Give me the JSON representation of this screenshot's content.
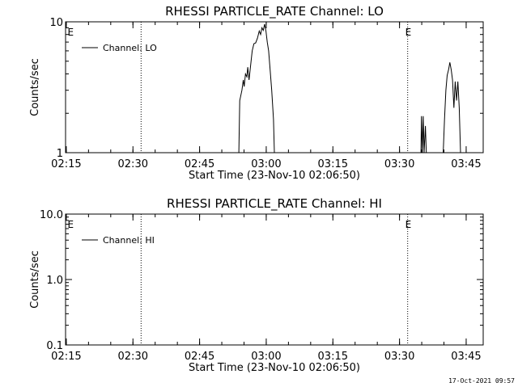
{
  "footer": {
    "timestamp": "17-Oct-2021 09:57"
  },
  "chart_data": [
    {
      "type": "line",
      "title": "RHESSI PARTICLE_RATE Channel: LO",
      "xlabel": "Start Time (23-Nov-10 02:06:50)",
      "ylabel": "Counts/sec",
      "x_ticks": [
        "02:15",
        "02:30",
        "02:45",
        "03:00",
        "03:15",
        "03:30",
        "03:45"
      ],
      "y_scale": "log",
      "ylim": [
        1,
        10
      ],
      "y_ticks": [
        "1",
        "10"
      ],
      "xlim_min": [
        8,
        102
      ],
      "grid": false,
      "legend": {
        "position": "top-left",
        "entries": [
          "Channel: LO"
        ]
      },
      "event_lines_min": [
        25,
        85,
        102
      ],
      "event_markers": [
        {
          "label": "E",
          "x_min": 9
        },
        {
          "label": "E",
          "x_min": 85
        }
      ],
      "series": [
        {
          "name": "Channel: LO",
          "points": [
            [
              47.0,
              1.0
            ],
            [
              47.2,
              2.5
            ],
            [
              47.7,
              3.0
            ],
            [
              48.0,
              3.6
            ],
            [
              48.2,
              3.2
            ],
            [
              48.5,
              4.0
            ],
            [
              48.8,
              3.8
            ],
            [
              49.0,
              4.5
            ],
            [
              49.3,
              3.6
            ],
            [
              49.7,
              4.8
            ],
            [
              50.0,
              6.0
            ],
            [
              50.4,
              6.8
            ],
            [
              50.8,
              6.9
            ],
            [
              51.2,
              7.5
            ],
            [
              51.6,
              8.5
            ],
            [
              51.9,
              8.0
            ],
            [
              52.2,
              9.0
            ],
            [
              52.5,
              8.6
            ],
            [
              52.8,
              9.6
            ],
            [
              53.1,
              8.5
            ],
            [
              53.4,
              7.0
            ],
            [
              53.7,
              6.0
            ],
            [
              54.0,
              4.5
            ],
            [
              54.4,
              3.0
            ],
            [
              54.8,
              1.8
            ],
            [
              55.0,
              1.0
            ]
          ]
        },
        {
          "name": "Channel: LO",
          "points": [
            [
              88.0,
              1.0
            ],
            [
              88.1,
              1.9
            ],
            [
              88.3,
              1.0
            ],
            [
              88.5,
              1.9
            ],
            [
              88.7,
              1.0
            ],
            [
              89.0,
              1.6
            ],
            [
              89.2,
              1.0
            ]
          ]
        },
        {
          "name": "Channel: LO",
          "points": [
            [
              93.0,
              1.0
            ],
            [
              93.3,
              1.8
            ],
            [
              93.6,
              3.0
            ],
            [
              93.9,
              3.9
            ],
            [
              94.2,
              4.3
            ],
            [
              94.5,
              4.9
            ],
            [
              94.8,
              4.3
            ],
            [
              95.1,
              3.6
            ],
            [
              95.4,
              2.2
            ],
            [
              95.7,
              3.5
            ],
            [
              96.0,
              2.5
            ],
            [
              96.3,
              3.5
            ],
            [
              96.6,
              2.2
            ],
            [
              96.9,
              1.0
            ]
          ]
        }
      ]
    },
    {
      "type": "line",
      "title": "RHESSI PARTICLE_RATE Channel: HI",
      "xlabel": "Start Time (23-Nov-10 02:06:50)",
      "ylabel": "Counts/sec",
      "x_ticks": [
        "02:15",
        "02:30",
        "02:45",
        "03:00",
        "03:15",
        "03:30",
        "03:45"
      ],
      "y_scale": "log",
      "ylim": [
        0.1,
        10
      ],
      "y_ticks": [
        "0.1",
        "1.0",
        "10.0"
      ],
      "xlim_min": [
        8,
        102
      ],
      "grid": false,
      "legend": {
        "position": "top-left",
        "entries": [
          "Channel: HI"
        ]
      },
      "event_lines_min": [
        25,
        85,
        102
      ],
      "event_markers": [
        {
          "label": "E",
          "x_min": 9
        },
        {
          "label": "E",
          "x_min": 85
        }
      ],
      "series": [
        {
          "name": "Channel: HI",
          "points": []
        }
      ]
    }
  ]
}
